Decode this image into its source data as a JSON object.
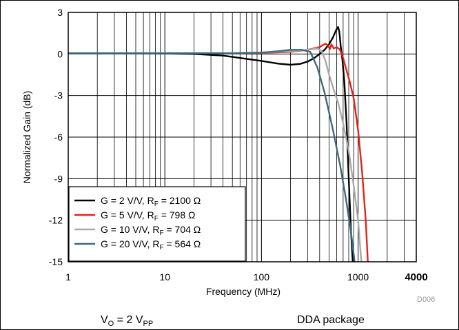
{
  "chart_data": {
    "type": "line",
    "xscale": "log",
    "xlim": [
      1,
      4000
    ],
    "ylim": [
      -15,
      3
    ],
    "xlabel": "Frequency (MHz)",
    "ylabel": "Normalized Gain (dB)",
    "x_ticks": [
      1,
      10,
      100,
      1000,
      4000
    ],
    "x_tick_labels": [
      "1",
      "10",
      "100",
      "1000",
      "4000"
    ],
    "y_ticks": [
      3,
      0,
      -3,
      -6,
      -9,
      -12,
      -15
    ],
    "y_tick_labels": [
      "3",
      "0",
      "-3",
      "-6",
      "-9",
      "-12",
      "-15"
    ],
    "grid": true,
    "legend_position": "bottom-left",
    "figure_id": "D006",
    "footer_left": {
      "main": "V",
      "sub1": "O",
      "mid": " = 2 V",
      "sub2": "PP"
    },
    "footer_right": "DDA package",
    "series": [
      {
        "legend": {
          "pre": "G = 2 V/V, R",
          "sub": "F",
          "post": " = 2100 Ω"
        },
        "color": "#000000",
        "points": [
          [
            1,
            0.05
          ],
          [
            5,
            0.05
          ],
          [
            10,
            0.03
          ],
          [
            20,
            0.0
          ],
          [
            40,
            -0.12
          ],
          [
            70,
            -0.35
          ],
          [
            100,
            -0.5
          ],
          [
            150,
            -0.7
          ],
          [
            200,
            -0.78
          ],
          [
            250,
            -0.72
          ],
          [
            300,
            -0.55
          ],
          [
            350,
            -0.3
          ],
          [
            400,
            0.0
          ],
          [
            450,
            0.3
          ],
          [
            500,
            0.7
          ],
          [
            550,
            1.2
          ],
          [
            590,
            1.7
          ],
          [
            620,
            1.95
          ],
          [
            640,
            1.6
          ],
          [
            660,
            0.6
          ],
          [
            690,
            -0.5
          ],
          [
            720,
            -2.0
          ],
          [
            760,
            -5.0
          ],
          [
            800,
            -9.0
          ],
          [
            840,
            -12.5
          ],
          [
            880,
            -15.0
          ]
        ]
      },
      {
        "legend": {
          "pre": "G = 5 V/V, R",
          "sub": "F",
          "post": " = 798 Ω"
        },
        "color": "#e2231a",
        "points": [
          [
            1,
            0.05
          ],
          [
            50,
            0.05
          ],
          [
            100,
            0.08
          ],
          [
            200,
            0.15
          ],
          [
            300,
            0.3
          ],
          [
            400,
            0.5
          ],
          [
            460,
            0.75
          ],
          [
            490,
            0.6
          ],
          [
            510,
            0.35
          ],
          [
            530,
            0.7
          ],
          [
            560,
            0.4
          ],
          [
            600,
            0.5
          ],
          [
            650,
            0.3
          ],
          [
            700,
            -0.3
          ],
          [
            760,
            -1.2
          ],
          [
            820,
            -2.0
          ],
          [
            900,
            -3.2
          ],
          [
            1000,
            -5.5
          ],
          [
            1100,
            -8.5
          ],
          [
            1200,
            -12.0
          ],
          [
            1260,
            -15.0
          ]
        ]
      },
      {
        "legend": {
          "pre": "G = 10 V/V, R",
          "sub": "F",
          "post": " = 704 Ω"
        },
        "color": "#aaaaaa",
        "points": [
          [
            1,
            0.05
          ],
          [
            50,
            0.05
          ],
          [
            100,
            0.1
          ],
          [
            200,
            0.2
          ],
          [
            300,
            0.3
          ],
          [
            380,
            0.4
          ],
          [
            420,
            0.2
          ],
          [
            460,
            -0.5
          ],
          [
            500,
            -1.5
          ],
          [
            550,
            -2.4
          ],
          [
            620,
            -3.5
          ],
          [
            700,
            -5.0
          ],
          [
            800,
            -7.0
          ],
          [
            900,
            -9.5
          ],
          [
            1000,
            -12.0
          ],
          [
            1080,
            -15.0
          ]
        ]
      },
      {
        "legend": {
          "pre": "G = 20 V/V, R",
          "sub": "F",
          "post": " = 564 Ω"
        },
        "color": "#3d6a7f",
        "points": [
          [
            1,
            0.05
          ],
          [
            50,
            0.05
          ],
          [
            100,
            0.1
          ],
          [
            150,
            0.2
          ],
          [
            200,
            0.3
          ],
          [
            260,
            0.3
          ],
          [
            320,
            0.15
          ],
          [
            380,
            -1.0
          ],
          [
            450,
            -2.8
          ],
          [
            550,
            -5.5
          ],
          [
            650,
            -8.0
          ],
          [
            750,
            -10.5
          ],
          [
            850,
            -13.0
          ],
          [
            920,
            -15.0
          ]
        ]
      }
    ]
  }
}
